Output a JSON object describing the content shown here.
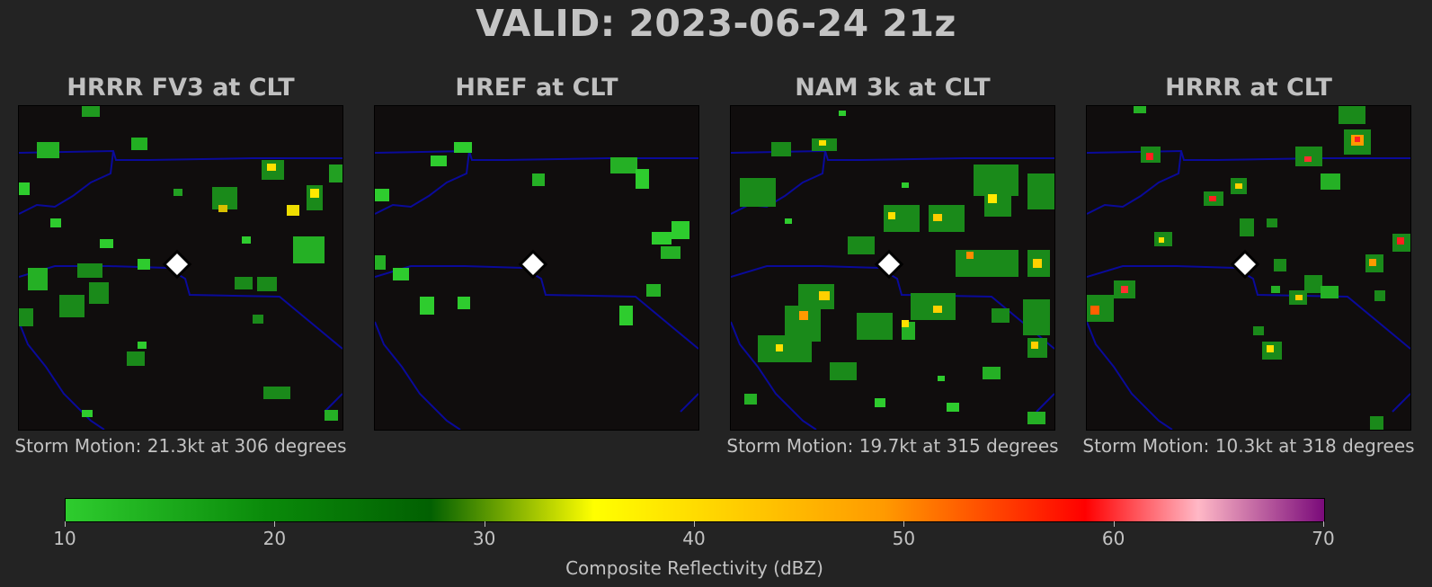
{
  "title": "VALID: 2023-06-24 21z",
  "panels": [
    {
      "title": "HRRR FV3 at CLT",
      "storm_motion": "Storm Motion: 21.3kt at 306 degrees"
    },
    {
      "title": "HREF at CLT",
      "storm_motion": ""
    },
    {
      "title": "NAM 3k at CLT",
      "storm_motion": "Storm Motion: 19.7kt at 315 degrees"
    },
    {
      "title": "HRRR at CLT",
      "storm_motion": "Storm Motion: 10.3kt at 318 degrees"
    }
  ],
  "colorbar": {
    "label": "Composite Reflectivity (dBZ)",
    "ticks": [
      "10",
      "20",
      "30",
      "40",
      "50",
      "60",
      "70"
    ],
    "colors": [
      "#2ecc2e",
      "#0a8a0a",
      "#026002",
      "#ffff00",
      "#ff9a00",
      "#ff0000",
      "#ffb8c6",
      "#7a0a7a"
    ]
  },
  "map": {
    "background": "#100d0d",
    "boundary_color": "#0a0a9a",
    "marker": "white-diamond"
  }
}
